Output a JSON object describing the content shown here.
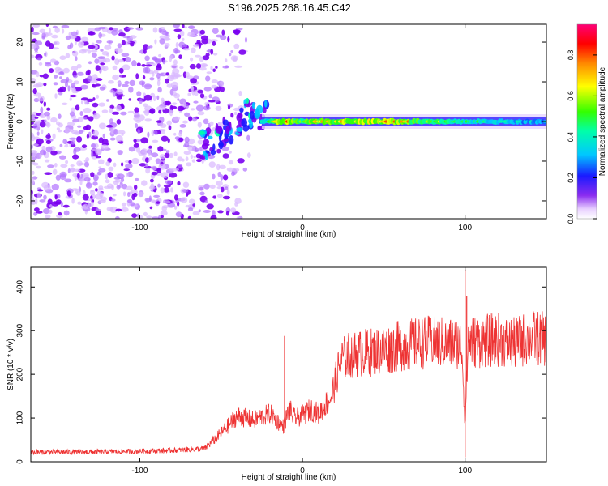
{
  "title": "S196.2025.268.16.45.C42",
  "chart_data": [
    {
      "type": "heatmap",
      "title": "S196.2025.268.16.45.C42",
      "xlabel": "Height of straight line (km)",
      "ylabel": "Frequency (Hz)",
      "xlim": [
        -167,
        150
      ],
      "ylim": [
        -24.5,
        24.5
      ],
      "xticks": [
        -100,
        0,
        100
      ],
      "yticks": [
        -20,
        -10,
        0,
        10,
        20
      ],
      "colorbar": {
        "label": "Normalized spectral amplitude",
        "range": [
          0.0,
          0.95
        ],
        "ticks": [
          "0.0",
          "0.2",
          "0.4",
          "0.6",
          "0.8"
        ]
      },
      "noise_region": {
        "x_start": -167,
        "x_end": -60,
        "fade_end": -30
      },
      "descending_feature": {
        "x": [
          -63,
          -55,
          -48,
          -40,
          -34,
          -28,
          -22
        ],
        "freq": [
          -6,
          -5,
          -3,
          0,
          2,
          2,
          1
        ]
      },
      "carrier_line": {
        "freq": 0,
        "x_start": -25,
        "x_end": 150,
        "peak_amplitude": [
          {
            "x": -20,
            "value": 0.55
          },
          {
            "x": -14,
            "value": 0.92
          },
          {
            "x": 0,
            "value": 0.75
          },
          {
            "x": 20,
            "value": 0.88
          },
          {
            "x": 40,
            "value": 0.93
          },
          {
            "x": 60,
            "value": 0.85
          },
          {
            "x": 80,
            "value": 0.7
          },
          {
            "x": 100,
            "value": 0.55
          },
          {
            "x": 120,
            "value": 0.5
          },
          {
            "x": 140,
            "value": 0.45
          }
        ]
      }
    },
    {
      "type": "line",
      "xlabel": "Height of straight line (km)",
      "ylabel": "SNR (10 * v/v)",
      "xlim": [
        -167,
        150
      ],
      "ylim": [
        0,
        445
      ],
      "xticks": [
        -100,
        0,
        100
      ],
      "yticks": [
        0,
        100,
        200,
        300,
        400
      ],
      "color": "#ee3333",
      "series": [
        {
          "name": "SNR",
          "x": [
            -167,
            -140,
            -120,
            -100,
            -80,
            -60,
            -50,
            -40,
            -30,
            -20,
            -12,
            -8,
            -5,
            0,
            5,
            10,
            15,
            18,
            22,
            25,
            30,
            40,
            50,
            60,
            70,
            80,
            90,
            95,
            98,
            100,
            102,
            105,
            110,
            120,
            130,
            140,
            150
          ],
          "y": [
            22,
            22,
            23,
            24,
            26,
            30,
            65,
            105,
            95,
            110,
            80,
            120,
            100,
            105,
            120,
            110,
            135,
            150,
            210,
            240,
            245,
            250,
            255,
            265,
            270,
            275,
            270,
            272,
            265,
            90,
            280,
            275,
            275,
            280,
            270,
            285,
            280
          ]
        }
      ],
      "spikes": [
        {
          "x": -11,
          "y": 288
        },
        {
          "x": 100,
          "y": 440
        },
        {
          "x": 100,
          "y": 10
        },
        {
          "x": 101,
          "y": 380
        }
      ]
    }
  ]
}
